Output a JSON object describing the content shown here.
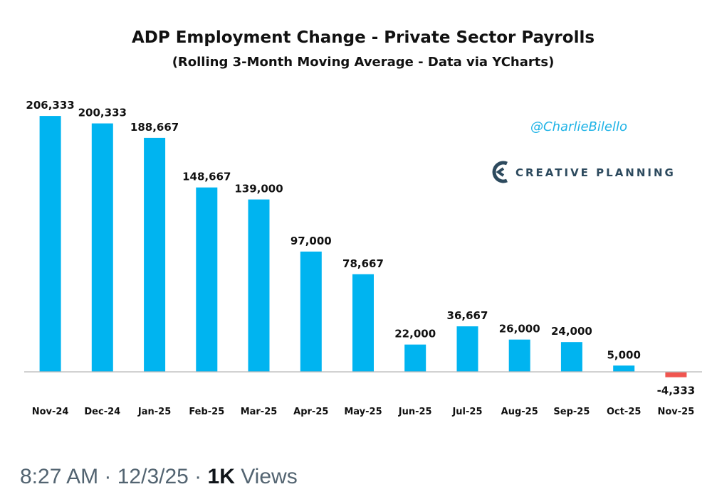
{
  "chart_data": {
    "type": "bar",
    "title": "ADP Employment Change - Private Sector Payrolls",
    "subtitle": "(Rolling 3-Month Moving Average - Data via YCharts)",
    "categories": [
      "Nov-24",
      "Dec-24",
      "Jan-25",
      "Feb-25",
      "Mar-25",
      "Apr-25",
      "May-25",
      "Jun-25",
      "Jul-25",
      "Aug-25",
      "Sep-25",
      "Oct-25",
      "Nov-25"
    ],
    "values": [
      206333,
      200333,
      188667,
      148667,
      139000,
      97000,
      78667,
      22000,
      36667,
      26000,
      24000,
      5000,
      -4333
    ],
    "value_labels": [
      "206,333",
      "200,333",
      "188,667",
      "148,667",
      "139,000",
      "97,000",
      "78,667",
      "22,000",
      "36,667",
      "26,000",
      "24,000",
      "5,000",
      "-4,333"
    ],
    "ylim": [
      -12000,
      215000
    ],
    "xlabel": "",
    "ylabel": "",
    "grid": false,
    "legend": "none",
    "colors": {
      "positive": "#00b4f0",
      "negative": "#f0554f",
      "axis": "#bbbbbb"
    }
  },
  "watermark": {
    "handle": "@CharlieBilello",
    "handle_color": "#1fb3e6",
    "brand": "CREATIVE PLANNING",
    "brand_color": "#2d4a5e",
    "brand_icon": "creative-planning-logo-icon"
  },
  "footer": {
    "time": "8:27 AM",
    "sep1": " · ",
    "date": "12/3/25",
    "sep2": " · ",
    "views_count": "1K",
    "views_label": " Views"
  }
}
